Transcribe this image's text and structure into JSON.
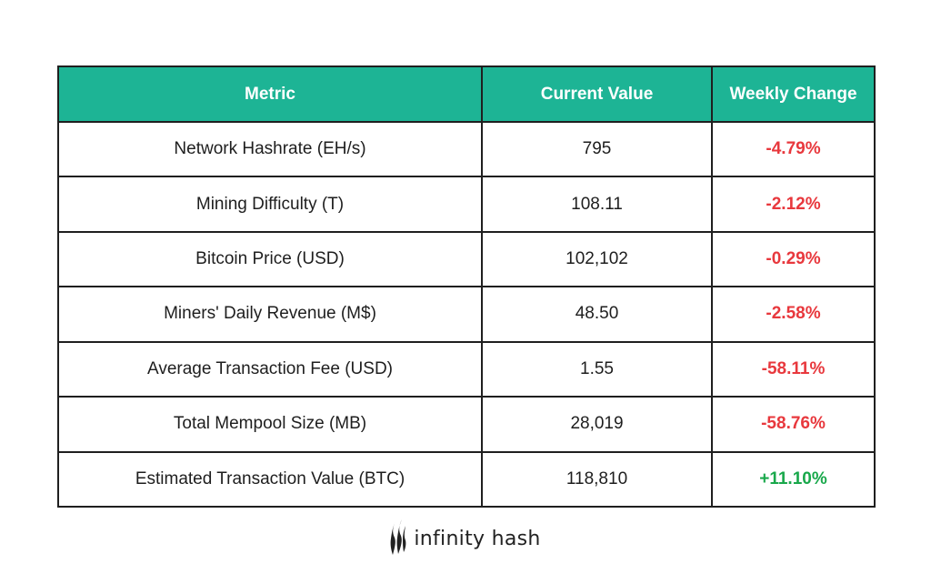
{
  "colors": {
    "header_bg": "#1db495",
    "header_text": "#ffffff",
    "negative": "#e8383d",
    "positive": "#19a84b",
    "border": "#1f1f1f"
  },
  "table": {
    "headers": {
      "metric": "Metric",
      "current_value": "Current Value",
      "weekly_change": "Weekly Change"
    },
    "rows": [
      {
        "metric": "Network Hashrate (EH/s)",
        "current_value": "795",
        "weekly_change": "-4.79%",
        "trend": "negative"
      },
      {
        "metric": "Mining Difficulty (T)",
        "current_value": "108.11",
        "weekly_change": "-2.12%",
        "trend": "negative"
      },
      {
        "metric": "Bitcoin Price (USD)",
        "current_value": "102,102",
        "weekly_change": "-0.29%",
        "trend": "negative"
      },
      {
        "metric": "Miners' Daily Revenue (M$)",
        "current_value": "48.50",
        "weekly_change": "-2.58%",
        "trend": "negative"
      },
      {
        "metric": "Average Transaction Fee (USD)",
        "current_value": "1.55",
        "weekly_change": "-58.11%",
        "trend": "negative"
      },
      {
        "metric": "Total Mempool Size (MB)",
        "current_value": "28,019",
        "weekly_change": "-58.76%",
        "trend": "negative"
      },
      {
        "metric": "Estimated Transaction Value (BTC)",
        "current_value": "118,810",
        "weekly_change": "+11.10%",
        "trend": "positive"
      }
    ]
  },
  "logo": {
    "text": "infinity hash",
    "icon": "infinity-hash-flame-icon"
  }
}
